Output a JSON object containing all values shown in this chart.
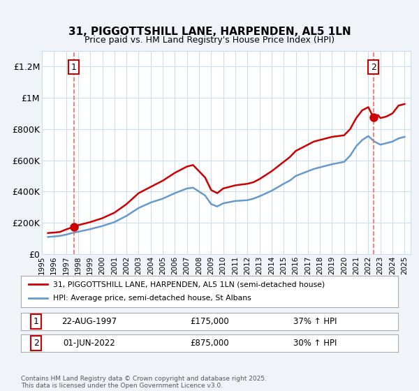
{
  "title": "31, PIGGOTTSHILL LANE, HARPENDEN, AL5 1LN",
  "subtitle": "Price paid vs. HM Land Registry's House Price Index (HPI)",
  "property_label": "31, PIGGOTTSHILL LANE, HARPENDEN, AL5 1LN (semi-detached house)",
  "hpi_label": "HPI: Average price, semi-detached house, St Albans",
  "footer": "Contains HM Land Registry data © Crown copyright and database right 2025.\nThis data is licensed under the Open Government Licence v3.0.",
  "point1_date": "22-AUG-1997",
  "point1_price": 175000,
  "point1_hpi": "37% ↑ HPI",
  "point2_date": "01-JUN-2022",
  "point2_price": 875000,
  "point2_hpi": "30% ↑ HPI",
  "ylim": [
    0,
    1300000
  ],
  "xlim_start": 1995.5,
  "xlim_end": 2025.5,
  "property_color": "#cc0000",
  "hpi_color": "#6699cc",
  "vline_color": "#ff6666",
  "background_color": "#f0f4f8",
  "plot_bg_color": "#ffffff",
  "grid_color": "#ccddee",
  "point1_x": 1997.64,
  "point2_x": 2022.42,
  "red_line_data_x": [
    1995.5,
    1996.0,
    1996.5,
    1997.0,
    1997.64,
    1998.0,
    1999.0,
    2000.0,
    2001.0,
    2002.0,
    2003.0,
    2004.0,
    2005.0,
    2006.0,
    2007.0,
    2007.5,
    2008.0,
    2008.5,
    2009.0,
    2009.5,
    2010.0,
    2011.0,
    2012.0,
    2012.5,
    2013.0,
    2014.0,
    2015.0,
    2015.5,
    2016.0,
    2016.5,
    2017.0,
    2017.5,
    2018.0,
    2018.5,
    2019.0,
    2020.0,
    2020.5,
    2021.0,
    2021.5,
    2022.0,
    2022.42,
    2022.8,
    2023.0,
    2023.5,
    2024.0,
    2024.5,
    2025.0
  ],
  "red_line_data_y": [
    135000,
    138000,
    142000,
    158000,
    175000,
    185000,
    205000,
    230000,
    265000,
    320000,
    390000,
    430000,
    470000,
    520000,
    560000,
    570000,
    530000,
    490000,
    410000,
    390000,
    420000,
    440000,
    450000,
    460000,
    480000,
    530000,
    590000,
    620000,
    660000,
    680000,
    700000,
    720000,
    730000,
    740000,
    750000,
    760000,
    800000,
    870000,
    920000,
    940000,
    875000,
    890000,
    870000,
    880000,
    900000,
    950000,
    960000
  ],
  "blue_line_data_x": [
    1995.5,
    1996.0,
    1996.5,
    1997.0,
    1997.5,
    1998.0,
    1999.0,
    2000.0,
    2001.0,
    2002.0,
    2003.0,
    2004.0,
    2005.0,
    2006.0,
    2007.0,
    2007.5,
    2008.0,
    2008.5,
    2009.0,
    2009.5,
    2010.0,
    2011.0,
    2012.0,
    2012.5,
    2013.0,
    2014.0,
    2015.0,
    2015.5,
    2016.0,
    2016.5,
    2017.0,
    2017.5,
    2018.0,
    2018.5,
    2019.0,
    2020.0,
    2020.5,
    2021.0,
    2021.5,
    2022.0,
    2022.5,
    2023.0,
    2023.5,
    2024.0,
    2024.5,
    2025.0
  ],
  "blue_line_data_y": [
    110000,
    113000,
    117000,
    125000,
    135000,
    143000,
    160000,
    180000,
    205000,
    245000,
    295000,
    330000,
    355000,
    390000,
    420000,
    425000,
    400000,
    375000,
    320000,
    305000,
    325000,
    340000,
    345000,
    355000,
    370000,
    405000,
    450000,
    470000,
    500000,
    515000,
    530000,
    545000,
    555000,
    565000,
    575000,
    590000,
    630000,
    690000,
    730000,
    755000,
    720000,
    700000,
    710000,
    720000,
    740000,
    750000
  ],
  "ytick_values": [
    0,
    200000,
    400000,
    600000,
    800000,
    1000000,
    1200000
  ],
  "ytick_labels": [
    "£0",
    "£200K",
    "£400K",
    "£600K",
    "£800K",
    "£1M",
    "£1.2M"
  ],
  "xtick_values": [
    1995,
    1996,
    1997,
    1998,
    1999,
    2000,
    2001,
    2002,
    2003,
    2004,
    2005,
    2006,
    2007,
    2008,
    2009,
    2010,
    2011,
    2012,
    2013,
    2014,
    2015,
    2016,
    2017,
    2018,
    2019,
    2020,
    2021,
    2022,
    2023,
    2024,
    2025
  ]
}
